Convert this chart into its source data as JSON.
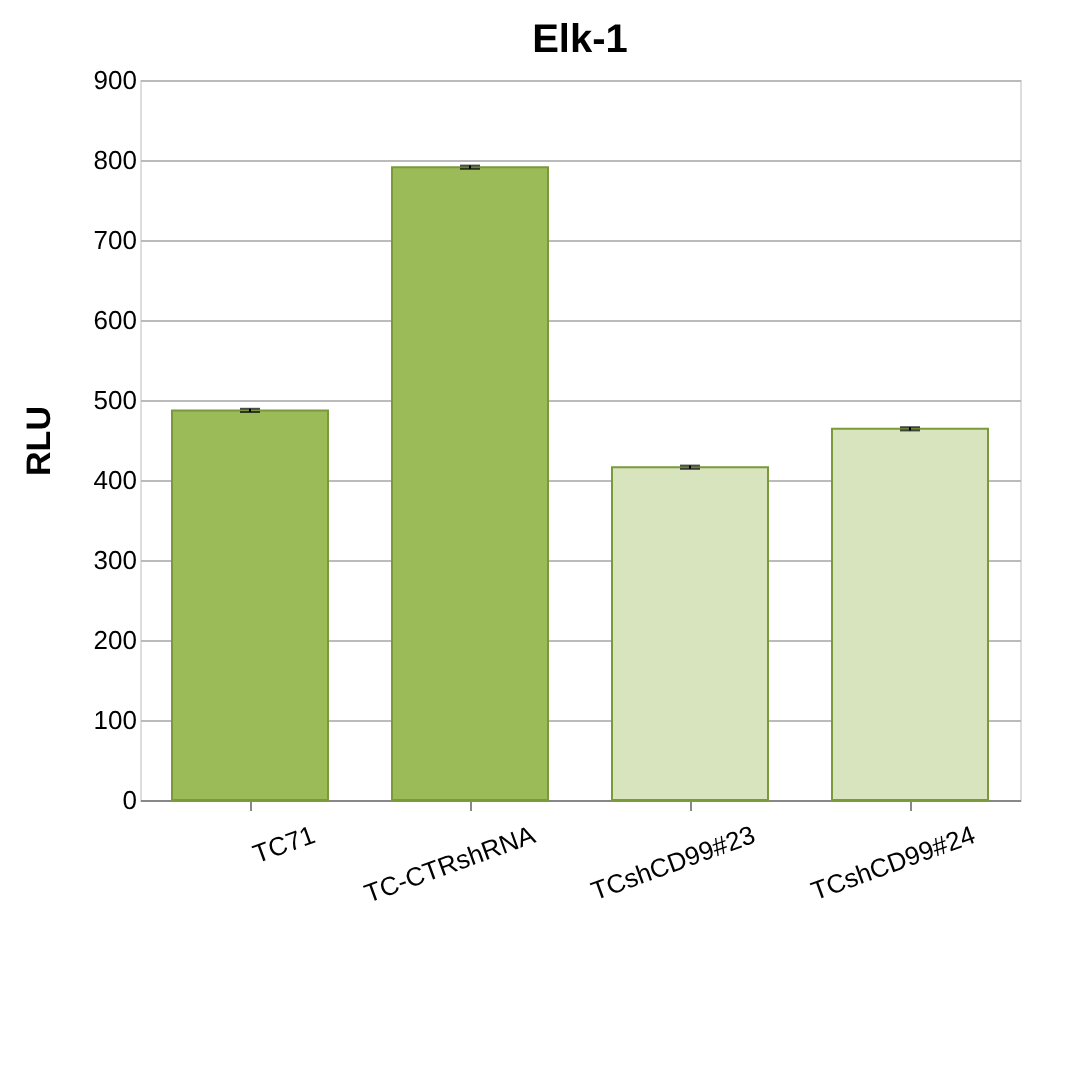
{
  "chart_data": {
    "type": "bar",
    "title": "Elk-1",
    "ylabel": "RLU",
    "categories": [
      "TC71",
      "TC-CTRshRNA",
      "TCshCD99#23",
      "TCshCD99#24"
    ],
    "values": [
      487,
      791,
      416,
      464
    ],
    "errors": [
      2,
      2,
      2,
      2
    ],
    "colors": [
      "#9bbb59",
      "#9bbb59",
      "#d7e4bd",
      "#d7e4bd"
    ],
    "ylim": [
      0,
      900
    ],
    "yticks": [
      0,
      100,
      200,
      300,
      400,
      500,
      600,
      700,
      800,
      900
    ],
    "grid": "y"
  }
}
